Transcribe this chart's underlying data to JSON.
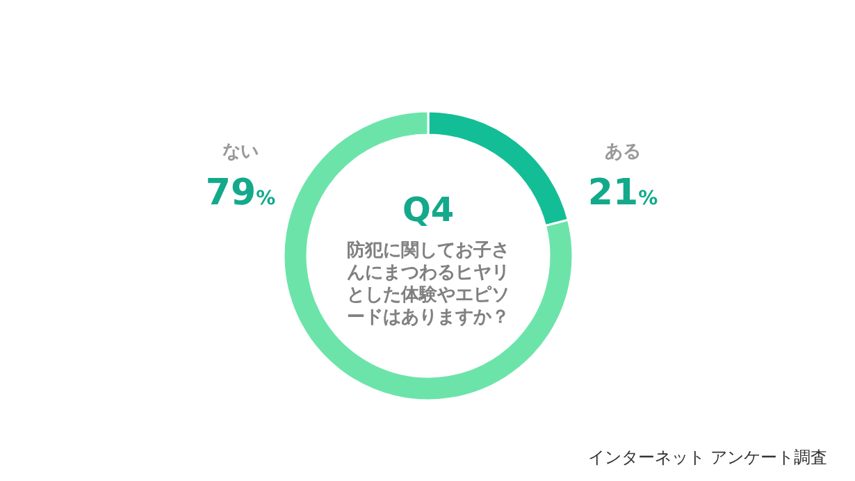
{
  "chart_data": {
    "type": "donut",
    "title": "Q4",
    "subtitle": "防犯に関してお子さんにまつわるヒヤリとした体験やエピソードはありますか？",
    "categories": [
      "ある",
      "ない"
    ],
    "values": [
      21,
      79
    ],
    "colors": [
      "#13be96",
      "#6ce4a9"
    ],
    "value_labels": [
      "21%",
      "79%"
    ],
    "annotations": [
      "インターネット アンケート調査"
    ]
  }
}
